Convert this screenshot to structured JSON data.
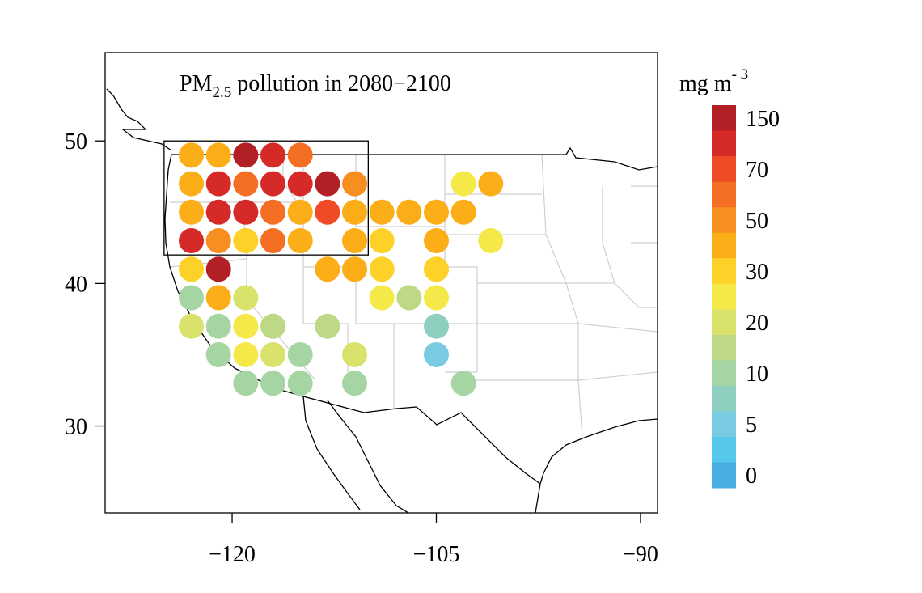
{
  "map": {
    "title": {
      "main": "PM",
      "sub": "2.5",
      "rest": " pollution in 2080−2100"
    },
    "legend_title": {
      "main": "mg m",
      "sup": "- 3"
    },
    "xlim": [
      -129.33,
      -88.75
    ],
    "ylim": [
      23.9,
      56.2
    ],
    "xticks": [
      {
        "value": -120,
        "label": "−120"
      },
      {
        "value": -105,
        "label": "−105"
      },
      {
        "value": -90,
        "label": "−90"
      }
    ],
    "yticks": [
      30,
      40,
      50
    ],
    "region": {
      "lon": [
        -125,
        -110
      ],
      "lat": [
        42,
        50
      ]
    },
    "colorbar": {
      "colors": [
        "#b22026",
        "#d52a27",
        "#ef4b26",
        "#f46f24",
        "#f68e20",
        "#fbae17",
        "#fdd128",
        "#f5e94a",
        "#d9e26a",
        "#bdd986",
        "#a4d5a2",
        "#8ecfbf",
        "#79cbe1",
        "#55c8ec",
        "#48aee2"
      ],
      "labels": [
        150,
        70,
        50,
        30,
        20,
        10,
        5,
        0
      ]
    },
    "dots": [
      {
        "lon": -123,
        "lat": 49,
        "color": "#fbae17"
      },
      {
        "lon": -121,
        "lat": 49,
        "color": "#fbae17"
      },
      {
        "lon": -119,
        "lat": 49,
        "color": "#b22026"
      },
      {
        "lon": -117,
        "lat": 49,
        "color": "#d52a27"
      },
      {
        "lon": -115,
        "lat": 49,
        "color": "#f46f24"
      },
      {
        "lon": -123,
        "lat": 47,
        "color": "#fbae17"
      },
      {
        "lon": -121,
        "lat": 47,
        "color": "#d52a27"
      },
      {
        "lon": -119,
        "lat": 47,
        "color": "#f46f24"
      },
      {
        "lon": -117,
        "lat": 47,
        "color": "#d52a27"
      },
      {
        "lon": -115,
        "lat": 47,
        "color": "#d52a27"
      },
      {
        "lon": -113,
        "lat": 47,
        "color": "#b22026"
      },
      {
        "lon": -111,
        "lat": 47,
        "color": "#f68e20"
      },
      {
        "lon": -103,
        "lat": 47,
        "color": "#f5e94a"
      },
      {
        "lon": -101,
        "lat": 47,
        "color": "#fbae17"
      },
      {
        "lon": -123,
        "lat": 45,
        "color": "#fbae17"
      },
      {
        "lon": -121,
        "lat": 45,
        "color": "#d52a27"
      },
      {
        "lon": -119,
        "lat": 45,
        "color": "#d52a27"
      },
      {
        "lon": -117,
        "lat": 45,
        "color": "#f46f24"
      },
      {
        "lon": -115,
        "lat": 45,
        "color": "#fbae17"
      },
      {
        "lon": -113,
        "lat": 45,
        "color": "#ef4b26"
      },
      {
        "lon": -111,
        "lat": 45,
        "color": "#fbae17"
      },
      {
        "lon": -109,
        "lat": 45,
        "color": "#fbae17"
      },
      {
        "lon": -107,
        "lat": 45,
        "color": "#fbae17"
      },
      {
        "lon": -105,
        "lat": 45,
        "color": "#fbae17"
      },
      {
        "lon": -103,
        "lat": 45,
        "color": "#fbae17"
      },
      {
        "lon": -123,
        "lat": 43,
        "color": "#d52a27"
      },
      {
        "lon": -121,
        "lat": 43,
        "color": "#f68e20"
      },
      {
        "lon": -119,
        "lat": 43,
        "color": "#fdd128"
      },
      {
        "lon": -117,
        "lat": 43,
        "color": "#f46f24"
      },
      {
        "lon": -115,
        "lat": 43,
        "color": "#fbae17"
      },
      {
        "lon": -111,
        "lat": 43,
        "color": "#fbae17"
      },
      {
        "lon": -109,
        "lat": 43,
        "color": "#fdd128"
      },
      {
        "lon": -105,
        "lat": 43,
        "color": "#fbae17"
      },
      {
        "lon": -101,
        "lat": 43,
        "color": "#f5e94a"
      },
      {
        "lon": -123,
        "lat": 41,
        "color": "#fdd128"
      },
      {
        "lon": -121,
        "lat": 41,
        "color": "#b22026"
      },
      {
        "lon": -113,
        "lat": 41,
        "color": "#fbae17"
      },
      {
        "lon": -111,
        "lat": 41,
        "color": "#fbae17"
      },
      {
        "lon": -109,
        "lat": 41,
        "color": "#fdd128"
      },
      {
        "lon": -105,
        "lat": 41,
        "color": "#fdd128"
      },
      {
        "lon": -123,
        "lat": 39,
        "color": "#a4d5a2"
      },
      {
        "lon": -121,
        "lat": 39,
        "color": "#fbae17"
      },
      {
        "lon": -119,
        "lat": 39,
        "color": "#d9e26a"
      },
      {
        "lon": -109,
        "lat": 39,
        "color": "#f5e94a"
      },
      {
        "lon": -107,
        "lat": 39,
        "color": "#bdd986"
      },
      {
        "lon": -105,
        "lat": 39,
        "color": "#f5e94a"
      },
      {
        "lon": -123,
        "lat": 37,
        "color": "#d9e26a"
      },
      {
        "lon": -121,
        "lat": 37,
        "color": "#a4d5a2"
      },
      {
        "lon": -119,
        "lat": 37,
        "color": "#f5e94a"
      },
      {
        "lon": -117,
        "lat": 37,
        "color": "#bdd986"
      },
      {
        "lon": -113,
        "lat": 37,
        "color": "#bdd986"
      },
      {
        "lon": -105,
        "lat": 37,
        "color": "#8ecfbf"
      },
      {
        "lon": -121,
        "lat": 35,
        "color": "#a4d5a2"
      },
      {
        "lon": -119,
        "lat": 35,
        "color": "#f5e94a"
      },
      {
        "lon": -117,
        "lat": 35,
        "color": "#d9e26a"
      },
      {
        "lon": -115,
        "lat": 35,
        "color": "#a4d5a2"
      },
      {
        "lon": -111,
        "lat": 35,
        "color": "#d9e26a"
      },
      {
        "lon": -105,
        "lat": 35,
        "color": "#79cbe1"
      },
      {
        "lon": -119,
        "lat": 33,
        "color": "#a4d5a2"
      },
      {
        "lon": -117,
        "lat": 33,
        "color": "#a4d5a2"
      },
      {
        "lon": -115,
        "lat": 33,
        "color": "#a4d5a2"
      },
      {
        "lon": -111,
        "lat": 33,
        "color": "#a4d5a2"
      },
      {
        "lon": -103,
        "lat": 33,
        "color": "#a4d5a2"
      }
    ]
  }
}
